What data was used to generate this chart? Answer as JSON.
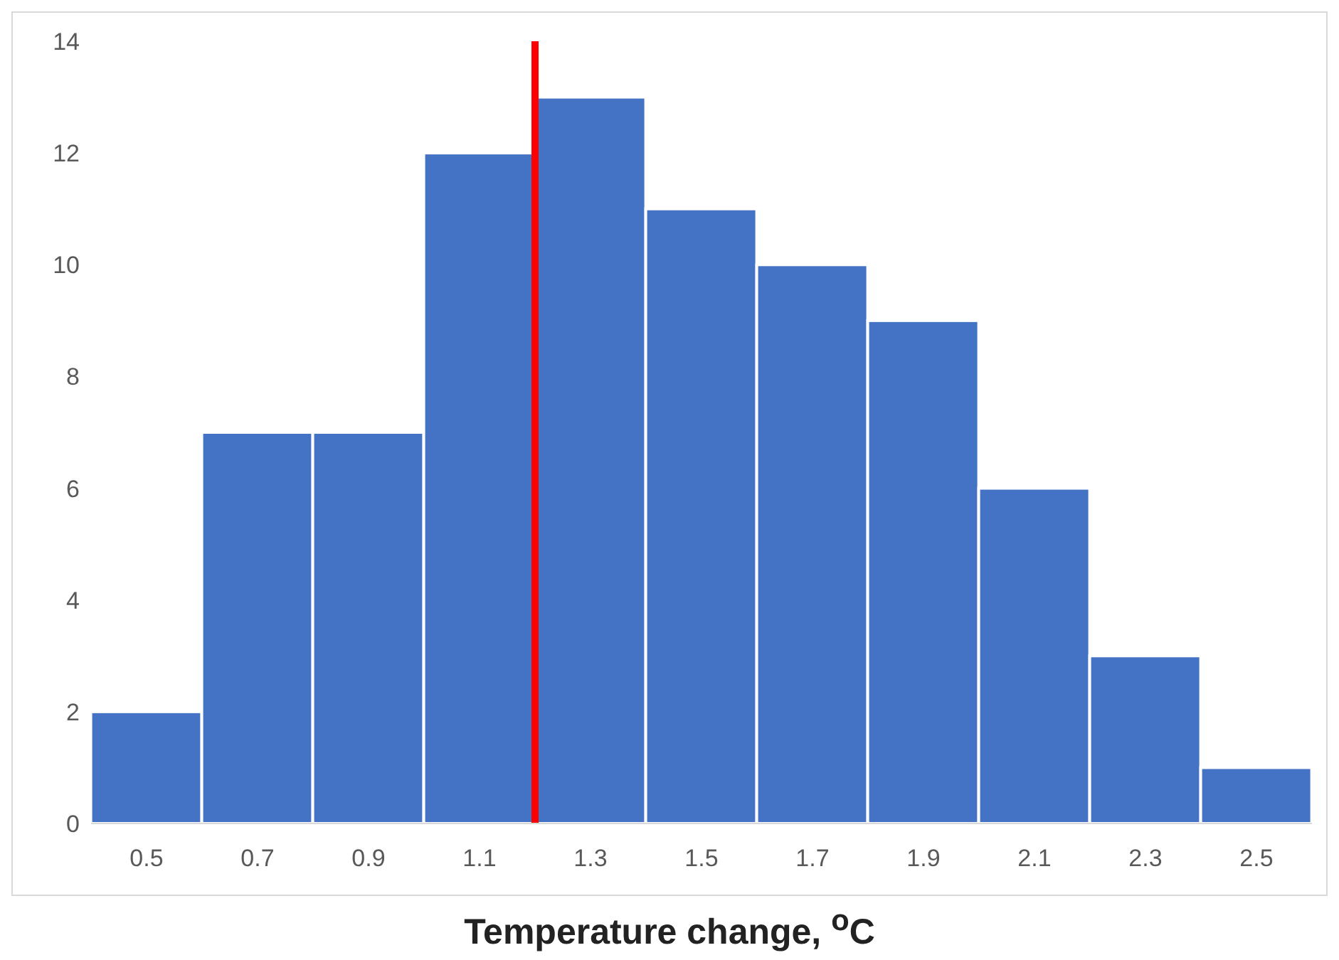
{
  "chart_data": {
    "type": "histogram",
    "xlabel": "Temperature change, $^{o}$C",
    "bins": [
      0.4,
      0.6,
      0.8,
      1.0,
      1.2,
      1.4,
      1.6,
      1.8,
      2.0,
      2.2,
      2.4,
      2.6
    ],
    "values": [
      2,
      7,
      7,
      12,
      13,
      11,
      10,
      9,
      6,
      3,
      1
    ],
    "color": "#4472c4",
    "xlim": [
      0.4,
      2.6
    ],
    "xticks": [
      0.5,
      0.7,
      0.9,
      1.1,
      1.3,
      1.5,
      1.7,
      1.9,
      2.1,
      2.3,
      2.5
    ],
    "ylim": [
      0,
      14
    ],
    "yticks": [
      0,
      2,
      4,
      6,
      8,
      10,
      12,
      14
    ],
    "grid": false,
    "legend": false,
    "ref_lines": [
      {
        "axis": "x",
        "value": 1.2,
        "color": "#ff0000"
      }
    ]
  }
}
